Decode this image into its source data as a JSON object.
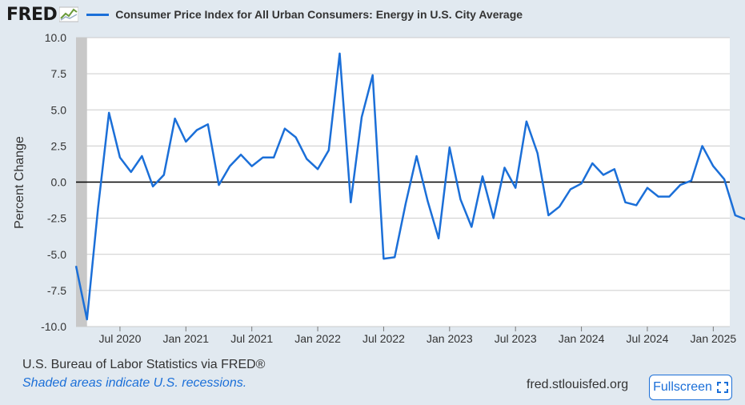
{
  "header": {
    "logo": "FRED",
    "series_title": "Consumer Price Index for All Urban Consumers: Energy in U.S. City Average"
  },
  "footer": {
    "source": "U.S. Bureau of Labor Statistics via FRED®",
    "recession_note": "Shaded areas indicate U.S. recessions.",
    "site": "fred.stlouisfed.org",
    "fullscreen_label": "Fullscreen"
  },
  "colors": {
    "line": "#1b6fd8",
    "recession": "#c8c8c8",
    "background": "#e1e9f0",
    "plot": "#ffffff"
  },
  "chart_data": {
    "type": "line",
    "title": "Consumer Price Index for All Urban Consumers: Energy in U.S. City Average",
    "ylabel": "Percent Change",
    "ylim": [
      -10,
      10
    ],
    "yticks": [
      "10.0",
      "7.5",
      "5.0",
      "2.5",
      "0.0",
      "-2.5",
      "-5.0",
      "-7.5",
      "-10.0"
    ],
    "xticks": [
      "Jul 2020",
      "Jan 2021",
      "Jul 2021",
      "Jan 2022",
      "Jul 2022",
      "Jan 2023",
      "Jul 2023",
      "Jan 2024",
      "Jul 2024",
      "Jan 2025"
    ],
    "recession": {
      "start": "2020-02",
      "end": "2020-04"
    },
    "series": [
      {
        "name": "Consumer Price Index for All Urban Consumers: Energy in U.S. City Average",
        "x": [
          "2020-03",
          "2020-04",
          "2020-05",
          "2020-06",
          "2020-07",
          "2020-08",
          "2020-09",
          "2020-10",
          "2020-11",
          "2020-12",
          "2021-01",
          "2021-02",
          "2021-03",
          "2021-04",
          "2021-05",
          "2021-06",
          "2021-07",
          "2021-08",
          "2021-09",
          "2021-10",
          "2021-11",
          "2021-12",
          "2022-01",
          "2022-02",
          "2022-03",
          "2022-04",
          "2022-05",
          "2022-06",
          "2022-07",
          "2022-08",
          "2022-09",
          "2022-10",
          "2022-11",
          "2022-12",
          "2023-01",
          "2023-02",
          "2023-03",
          "2023-04",
          "2023-05",
          "2023-06",
          "2023-07",
          "2023-08",
          "2023-09",
          "2023-10",
          "2023-11",
          "2023-12",
          "2024-01",
          "2024-02",
          "2024-03",
          "2024-04",
          "2024-05",
          "2024-06",
          "2024-07",
          "2024-08",
          "2024-09",
          "2024-10",
          "2024-11",
          "2024-12",
          "2025-01",
          "2025-02",
          "2025-03",
          "2025-04"
        ],
        "values": [
          -5.8,
          -9.5,
          -1.8,
          4.8,
          1.7,
          0.7,
          1.8,
          -0.3,
          0.5,
          4.4,
          2.8,
          3.6,
          4.0,
          -0.2,
          1.1,
          1.9,
          1.1,
          1.7,
          1.7,
          3.7,
          3.1,
          1.6,
          0.9,
          2.2,
          8.9,
          -1.4,
          4.5,
          7.4,
          -5.3,
          -5.2,
          -1.5,
          1.8,
          -1.3,
          -3.9,
          2.4,
          -1.2,
          -3.1,
          0.4,
          -2.5,
          1.0,
          -0.4,
          4.2,
          2.0,
          -2.3,
          -1.7,
          -0.5,
          -0.1,
          1.3,
          0.5,
          0.9,
          -1.4,
          -1.6,
          -0.4,
          -1.0,
          -1.0,
          -0.2,
          0.1,
          2.5,
          1.1,
          0.2,
          -2.3,
          -2.6
        ]
      }
    ]
  }
}
